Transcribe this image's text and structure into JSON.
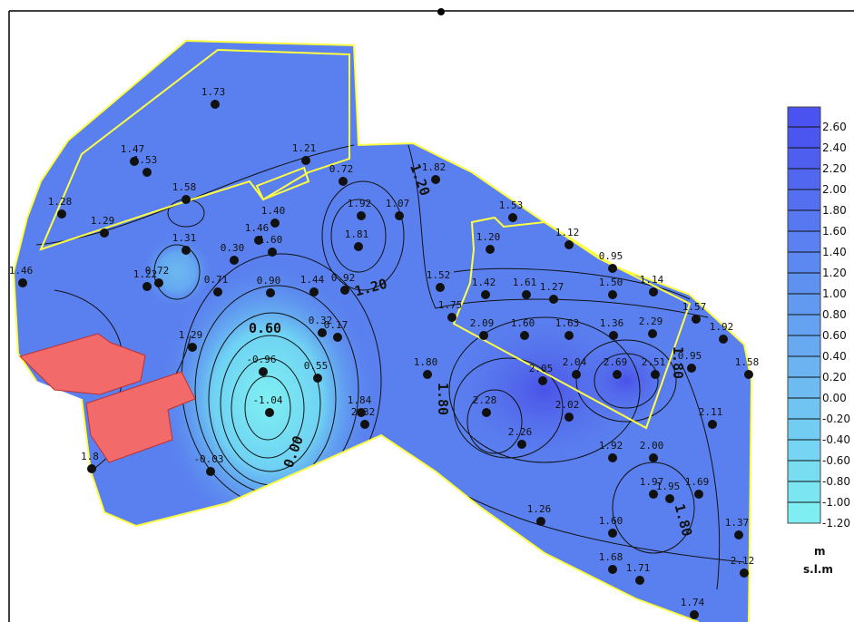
{
  "map": {
    "points": [
      "1.73",
      "1.47",
      "1.53",
      "1.21",
      "0.72",
      "1.82",
      "1.28",
      "1.29",
      "1.58",
      "1.40",
      "1.92",
      "1.07",
      "1.46",
      "1.60",
      "1.81",
      "1.31",
      "0.30",
      "1.53",
      "1.12",
      "1.20",
      "0.95",
      "1.46",
      "0.72",
      "1.22",
      "0.71",
      "0.90",
      "1.44",
      "0.92",
      "1.52",
      "1.42",
      "1.61",
      "1.27",
      "1.50",
      "1.14",
      "1.75",
      "2.09",
      "1.60",
      "1.63",
      "1.36",
      "2.29",
      "1.57",
      "1.92",
      "0.32",
      "0.17",
      "1.29",
      "-0.96",
      "0.55",
      "1.80",
      "2.05",
      "2.04",
      "2.69",
      "2.51",
      "0.95",
      "1.58",
      "-1.04",
      "1.84",
      "2.32",
      "2.28",
      "2.02",
      "2.11",
      "2.26",
      "1.92",
      "2.00",
      "1.8",
      "-0.03",
      "1.97",
      "1.95",
      "1.69",
      "1.26",
      "1.60",
      "1.37",
      "1.68",
      "1.71",
      "2.12",
      "1.74"
    ],
    "contour_labels": [
      "1.20",
      "1.20",
      "0.60",
      "1.80",
      "1.80",
      "0.00",
      "1.80"
    ]
  },
  "legend": {
    "ticks": [
      {
        "value": 2.6,
        "label": "2.60"
      },
      {
        "value": 2.4,
        "label": "2.40"
      },
      {
        "value": 2.2,
        "label": "2.20"
      },
      {
        "value": 2,
        "label": "2.00"
      },
      {
        "value": 1.8,
        "label": "1.80"
      },
      {
        "value": 1.6,
        "label": "1.60"
      },
      {
        "value": 1.4,
        "label": "1.40"
      },
      {
        "value": 1.2,
        "label": "1.20"
      },
      {
        "value": 1,
        "label": "1.00"
      },
      {
        "value": 0.8,
        "label": "0.80"
      },
      {
        "value": 0.6,
        "label": "0.60"
      },
      {
        "value": 0.4,
        "label": "0.40"
      },
      {
        "value": 0.2,
        "label": "0.20"
      },
      {
        "value": 0,
        "label": "0.00"
      },
      {
        "value": -0.2,
        "label": "-0.20"
      },
      {
        "value": -0.4,
        "label": "-0.40"
      },
      {
        "value": -0.6,
        "label": "-0.60"
      },
      {
        "value": -0.8,
        "label": "-0.80"
      },
      {
        "value": -1,
        "label": "-1.00"
      },
      {
        "value": -1.2,
        "label": "-1.20"
      }
    ],
    "unit": [
      "m",
      "s.l.m"
    ]
  }
}
